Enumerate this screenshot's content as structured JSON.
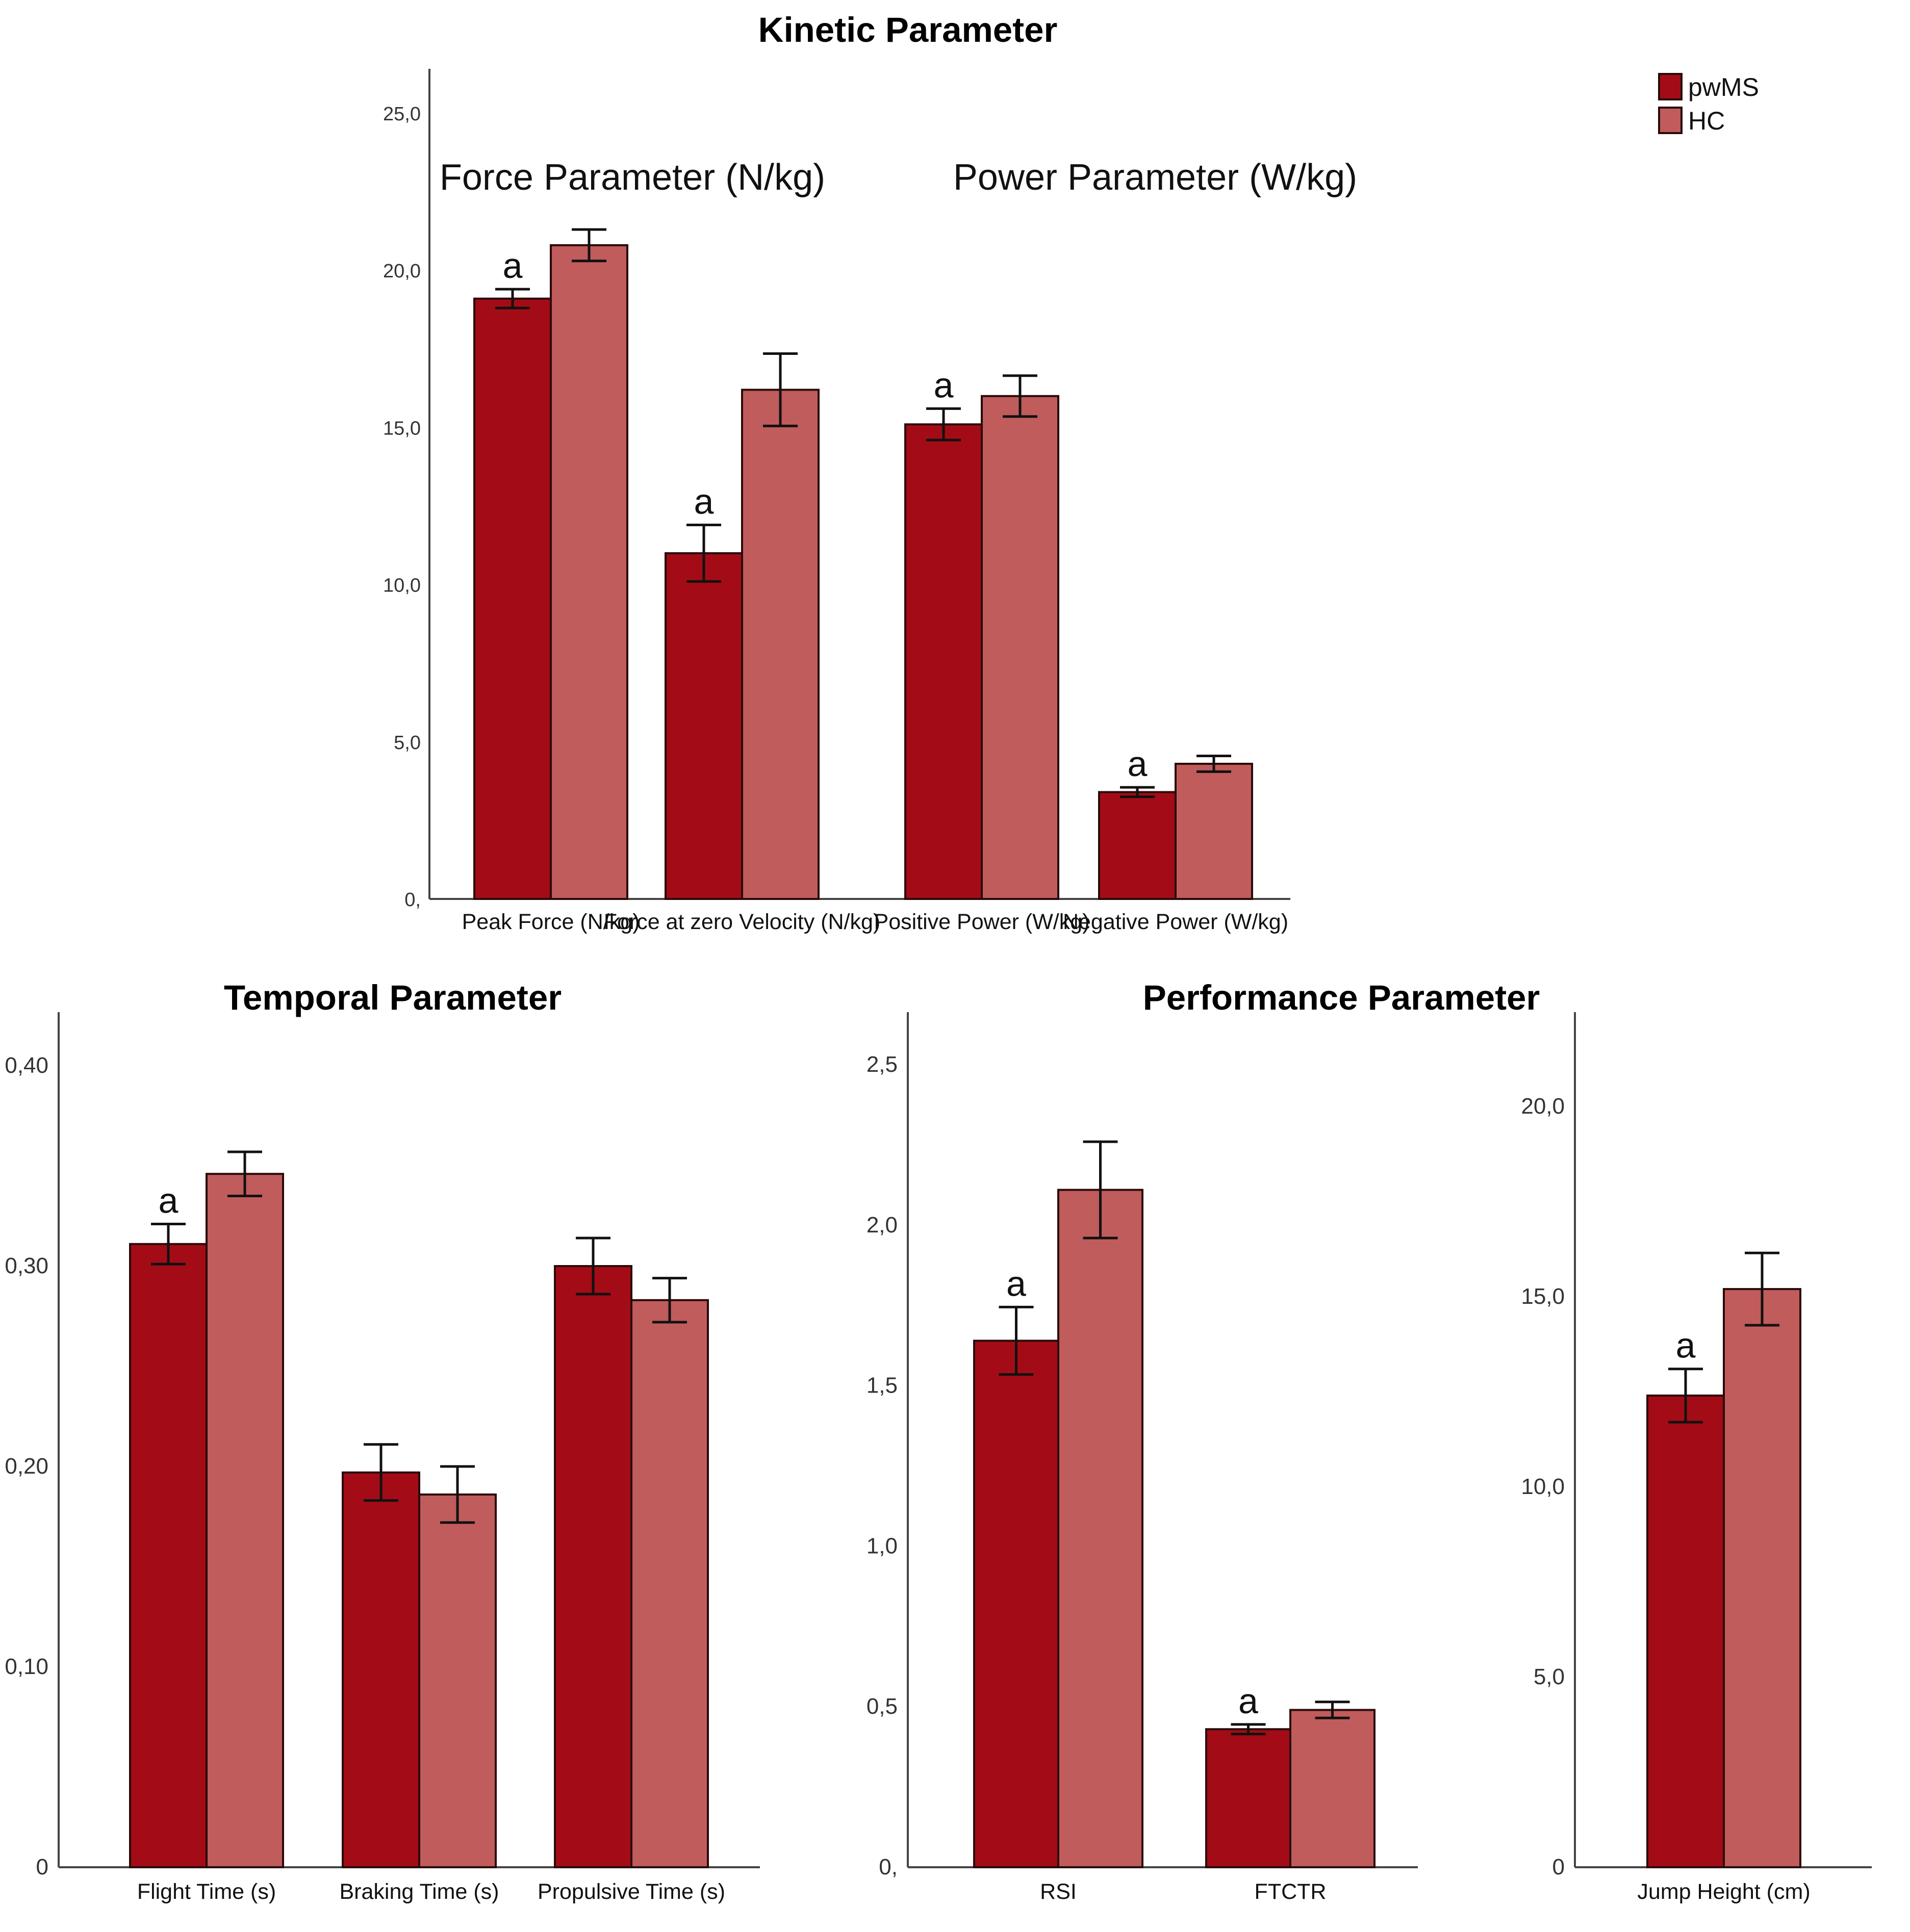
{
  "colors": {
    "pwMS": "#a30c16",
    "HC": "#c05c5c"
  },
  "legend": [
    {
      "name": "pwMS",
      "color": "#a30c16"
    },
    {
      "name": "HC",
      "color": "#c05c5c"
    }
  ],
  "chart_data": [
    {
      "id": "kinetic",
      "type": "bar",
      "title": "Kinetic Parameter",
      "group_labels": [
        "Force Parameter (N/kg)",
        "Power Parameter (W/kg)"
      ],
      "categories": [
        "Peak Force (N/kg)",
        "Force at zero Velocity (N/kg)",
        "Positive Power (W/kg)",
        "Negative Power (W/kg)"
      ],
      "ylim": [
        0,
        25
      ],
      "yticks": [
        0,
        5,
        10,
        15,
        20,
        25
      ],
      "yticklabels": [
        "0,",
        "5,0",
        "10,0",
        "15,0",
        "20,0",
        "25,0"
      ],
      "series": [
        {
          "name": "pwMS",
          "values": [
            19.1,
            11.0,
            15.1,
            3.4
          ],
          "errors": [
            0.3,
            0.9,
            0.5,
            0.15
          ]
        },
        {
          "name": "HC",
          "values": [
            20.8,
            16.2,
            16.0,
            4.3
          ],
          "errors": [
            0.5,
            1.15,
            0.65,
            0.25
          ]
        }
      ],
      "annotations": [
        {
          "category": 0,
          "series": "pwMS",
          "text": "a"
        },
        {
          "category": 1,
          "series": "pwMS",
          "text": "a"
        },
        {
          "category": 2,
          "series": "pwMS",
          "text": "a"
        },
        {
          "category": 3,
          "series": "pwMS",
          "text": "a"
        }
      ]
    },
    {
      "id": "temporal",
      "type": "bar",
      "title": "Temporal Parameter",
      "categories": [
        "Flight Time (s)",
        "Braking Time (s)",
        "Propulsive Time (s)"
      ],
      "ylim": [
        0,
        0.42
      ],
      "yticks": [
        0,
        0.1,
        0.2,
        0.3,
        0.4
      ],
      "yticklabels": [
        "0",
        "0,10",
        "0,20",
        "0,30",
        "0,40"
      ],
      "series": [
        {
          "name": "pwMS",
          "values": [
            0.311,
            0.197,
            0.3
          ],
          "errors": [
            0.01,
            0.014,
            0.014
          ]
        },
        {
          "name": "HC",
          "values": [
            0.346,
            0.186,
            0.283
          ],
          "errors": [
            0.011,
            0.014,
            0.011
          ]
        }
      ],
      "annotations": [
        {
          "category": 0,
          "series": "pwMS",
          "text": "a"
        }
      ]
    },
    {
      "id": "performance",
      "type": "bar",
      "title": "Performance Parameter",
      "categories": [
        "RSI",
        "FTCTR"
      ],
      "ylim": [
        0,
        2.55
      ],
      "yticks": [
        0,
        0.5,
        1.0,
        1.5,
        2.0,
        2.5
      ],
      "yticklabels": [
        "0,",
        "0,5",
        "1,0",
        "1,5",
        "2,0",
        "2,5"
      ],
      "series": [
        {
          "name": "pwMS",
          "values": [
            1.64,
            0.43
          ],
          "errors": [
            0.105,
            0.015
          ]
        },
        {
          "name": "HC",
          "values": [
            2.11,
            0.49
          ],
          "errors": [
            0.15,
            0.025
          ]
        }
      ],
      "annotations": [
        {
          "category": 0,
          "series": "pwMS",
          "text": "a"
        },
        {
          "category": 1,
          "series": "pwMS",
          "text": "a"
        }
      ]
    },
    {
      "id": "jump",
      "type": "bar",
      "title": "",
      "categories": [
        "Jump Height (cm)"
      ],
      "ylim": [
        0,
        22
      ],
      "yticks": [
        0,
        5,
        10,
        15,
        20
      ],
      "yticklabels": [
        "0",
        "5,0",
        "10,0",
        "15,0",
        "20,0"
      ],
      "series": [
        {
          "name": "pwMS",
          "values": [
            12.4
          ],
          "errors": [
            0.7
          ]
        },
        {
          "name": "HC",
          "values": [
            15.2
          ],
          "errors": [
            0.95
          ]
        }
      ],
      "annotations": [
        {
          "category": 0,
          "series": "pwMS",
          "text": "a"
        }
      ]
    }
  ]
}
